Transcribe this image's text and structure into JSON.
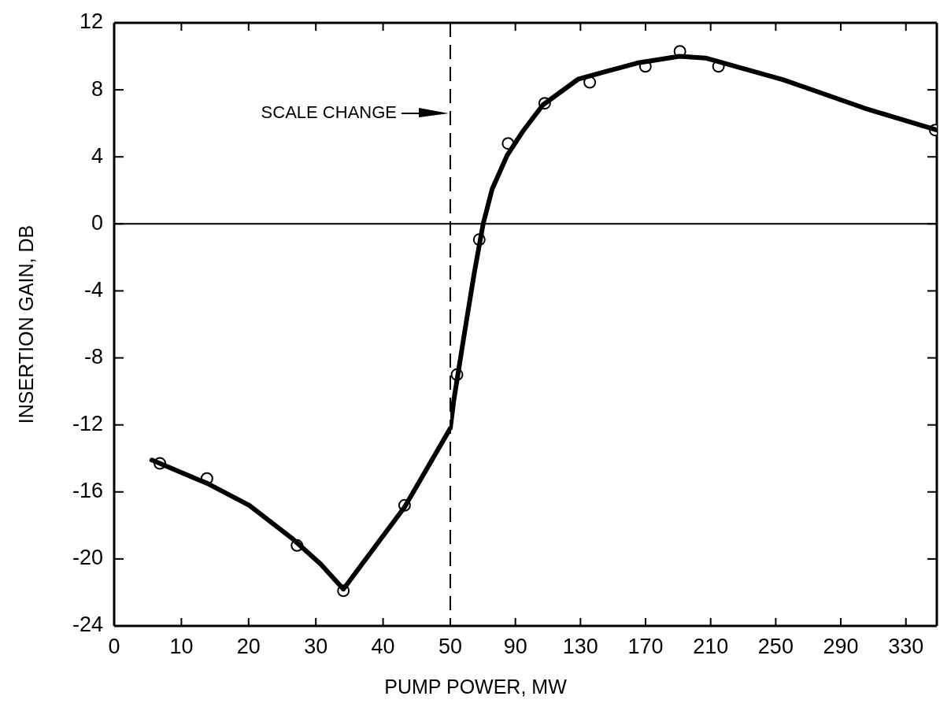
{
  "chart_data": [
    {
      "type": "line",
      "xlabel": "PUMP POWER, MW",
      "ylabel": "INSERTION GAIN, DB",
      "xlim": [
        0,
        50
      ],
      "xticks": [
        0,
        10,
        20,
        30,
        40,
        50
      ],
      "ylim": [
        -24,
        12
      ],
      "yticks": [
        -24,
        -20,
        -16,
        -12,
        -8,
        -4,
        0,
        4,
        8,
        12
      ],
      "ref_lines": [
        {
          "axis": "x",
          "value": 50,
          "line_style": "dashed",
          "color": "#000000"
        },
        {
          "axis": "y",
          "value": 0,
          "line_style": "solid",
          "color": "#000000"
        }
      ],
      "annotations": [
        {
          "text": "SCALE CHANGE",
          "x": 50,
          "y": 6.6
        }
      ],
      "series": [
        {
          "type": "line",
          "color": "#000000",
          "marker": "none",
          "line_style": "solid",
          "x": [
            5.6,
            13.9,
            20.1,
            26.4,
            30.7,
            34.1,
            43.2,
            50
          ],
          "values": [
            -14.1,
            -15.5,
            -16.8,
            -18.75,
            -20.3,
            -21.8,
            -16.9,
            -12.2
          ]
        },
        {
          "type": "scatter",
          "color": "#000000",
          "marker": "circle",
          "x": [
            6.8,
            13.8,
            27.2,
            34.1,
            43.2
          ],
          "values": [
            -14.3,
            -15.2,
            -19.2,
            -21.9,
            -16.8
          ]
        }
      ]
    },
    {
      "type": "line",
      "tick_labels": "x",
      "xlim": [
        50,
        349
      ],
      "xticks": [
        90,
        130,
        170,
        210,
        250,
        290,
        330
      ],
      "ylim": [
        -24,
        12
      ],
      "yticks": [
        -24,
        -20,
        -16,
        -12,
        -8,
        -4,
        0,
        4,
        8,
        12
      ],
      "ref_lines": [
        {
          "axis": "y",
          "value": 0,
          "line_style": "solid",
          "color": "#000000"
        }
      ],
      "series": [
        {
          "type": "line",
          "color": "#000000",
          "marker": "none",
          "line_style": "solid",
          "x": [
            50,
            52.2,
            58.4,
            64.7,
            70.2,
            75.7,
            85.0,
            94.4,
            106.9,
            128.8,
            164.9,
            190.8,
            206.8,
            254.7,
            304.7,
            349
          ],
          "values": [
            -12.2,
            -10.5,
            -6.7,
            -2.95,
            0,
            2.07,
            4.1,
            5.5,
            7.1,
            8.65,
            9.6,
            10.0,
            9.9,
            8.6,
            6.9,
            5.6
          ]
        },
        {
          "type": "scatter",
          "color": "#000000",
          "marker": "circle",
          "x": [
            54.1,
            67.8,
            85.5,
            108,
            135.7,
            169.9,
            191.1,
            214.8,
            348
          ],
          "values": [
            -9.0,
            -0.94,
            4.8,
            7.2,
            8.45,
            9.4,
            10.3,
            9.4,
            5.6
          ]
        }
      ]
    }
  ]
}
